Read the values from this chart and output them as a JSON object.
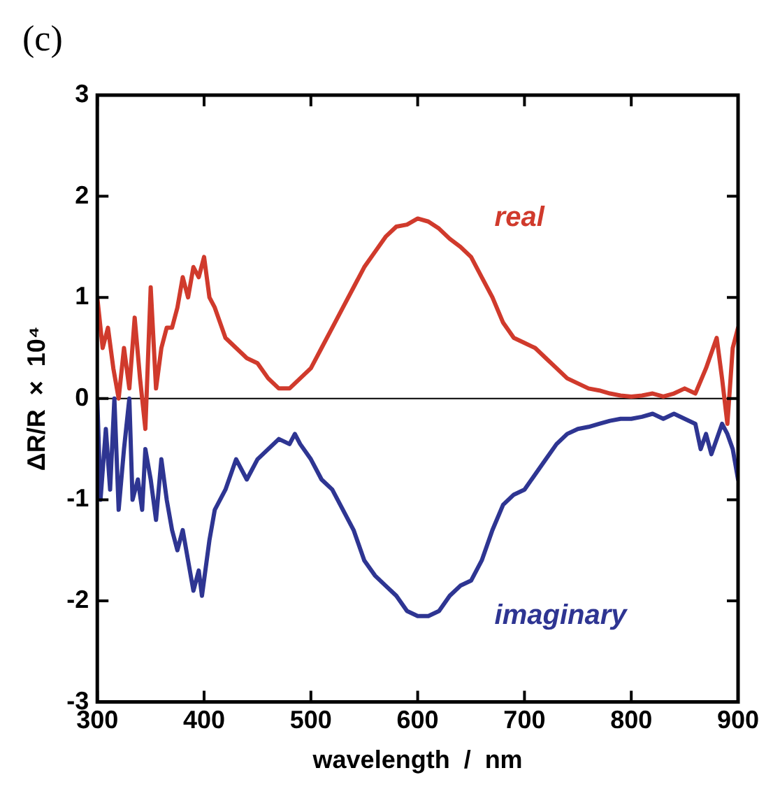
{
  "chart_data": {
    "type": "line",
    "annotations": [
      "(c)"
    ],
    "xlabel": "wavelength  /  nm",
    "ylabel": "ΔR/R  ×  10⁴",
    "xlim": [
      300,
      900
    ],
    "xticks": [
      300,
      400,
      500,
      600,
      700,
      800,
      900
    ],
    "ylim": [
      -3,
      3
    ],
    "yticks": [
      -3,
      -2,
      -1,
      0,
      1,
      2,
      3
    ],
    "grid": false,
    "legend": false,
    "marker": "none",
    "line_style": "solid",
    "ref_lines": [
      {
        "axis": "y",
        "value": 0,
        "color": "#000000"
      }
    ],
    "series": [
      {
        "name": "real",
        "color": "#d03a2c",
        "x": [
          300,
          305,
          310,
          315,
          320,
          325,
          330,
          335,
          340,
          345,
          350,
          355,
          360,
          365,
          370,
          375,
          380,
          385,
          390,
          395,
          400,
          405,
          410,
          420,
          430,
          440,
          450,
          460,
          470,
          480,
          490,
          500,
          510,
          520,
          530,
          540,
          550,
          560,
          570,
          580,
          590,
          600,
          610,
          620,
          630,
          640,
          650,
          660,
          670,
          680,
          690,
          700,
          710,
          720,
          730,
          740,
          750,
          760,
          770,
          780,
          790,
          800,
          810,
          820,
          830,
          840,
          850,
          860,
          870,
          880,
          885,
          890,
          895,
          900
        ],
        "values": [
          1.0,
          0.5,
          0.7,
          0.3,
          0.0,
          0.5,
          0.1,
          0.8,
          0.2,
          -0.3,
          1.1,
          0.1,
          0.5,
          0.7,
          0.7,
          0.9,
          1.2,
          1.0,
          1.3,
          1.2,
          1.4,
          1.0,
          0.9,
          0.6,
          0.5,
          0.4,
          0.35,
          0.2,
          0.1,
          0.1,
          0.2,
          0.3,
          0.5,
          0.7,
          0.9,
          1.1,
          1.3,
          1.45,
          1.6,
          1.7,
          1.72,
          1.78,
          1.75,
          1.68,
          1.58,
          1.5,
          1.4,
          1.2,
          1.0,
          0.75,
          0.6,
          0.55,
          0.5,
          0.4,
          0.3,
          0.2,
          0.15,
          0.1,
          0.08,
          0.05,
          0.03,
          0.02,
          0.03,
          0.05,
          0.02,
          0.05,
          0.1,
          0.05,
          0.3,
          0.6,
          0.2,
          -0.25,
          0.5,
          0.7
        ]
      },
      {
        "name": "imaginary",
        "color": "#2e3592",
        "x": [
          300,
          303,
          308,
          312,
          316,
          320,
          325,
          330,
          333,
          338,
          342,
          345,
          350,
          355,
          360,
          365,
          370,
          375,
          380,
          385,
          390,
          395,
          398,
          405,
          410,
          420,
          430,
          440,
          450,
          460,
          470,
          480,
          485,
          490,
          500,
          510,
          520,
          530,
          540,
          550,
          560,
          570,
          580,
          590,
          600,
          610,
          620,
          630,
          640,
          650,
          660,
          670,
          680,
          690,
          700,
          710,
          720,
          730,
          740,
          750,
          760,
          770,
          780,
          790,
          800,
          810,
          820,
          830,
          840,
          850,
          860,
          865,
          870,
          875,
          880,
          885,
          890,
          895,
          900
        ],
        "values": [
          0,
          -1.0,
          -0.3,
          -0.9,
          0.0,
          -1.1,
          -0.5,
          0.0,
          -1.0,
          -0.8,
          -1.1,
          -0.5,
          -0.8,
          -1.2,
          -0.6,
          -1.0,
          -1.3,
          -1.5,
          -1.3,
          -1.6,
          -1.9,
          -1.7,
          -1.95,
          -1.4,
          -1.1,
          -0.9,
          -0.6,
          -0.8,
          -0.6,
          -0.5,
          -0.4,
          -0.45,
          -0.35,
          -0.45,
          -0.6,
          -0.8,
          -0.9,
          -1.1,
          -1.3,
          -1.6,
          -1.75,
          -1.85,
          -1.95,
          -2.1,
          -2.15,
          -2.15,
          -2.1,
          -1.95,
          -1.85,
          -1.8,
          -1.6,
          -1.3,
          -1.05,
          -0.95,
          -0.9,
          -0.75,
          -0.6,
          -0.45,
          -0.35,
          -0.3,
          -0.28,
          -0.25,
          -0.22,
          -0.2,
          -0.2,
          -0.18,
          -0.15,
          -0.2,
          -0.15,
          -0.2,
          -0.25,
          -0.5,
          -0.35,
          -0.55,
          -0.4,
          -0.25,
          -0.35,
          -0.5,
          -0.8
        ]
      }
    ]
  }
}
